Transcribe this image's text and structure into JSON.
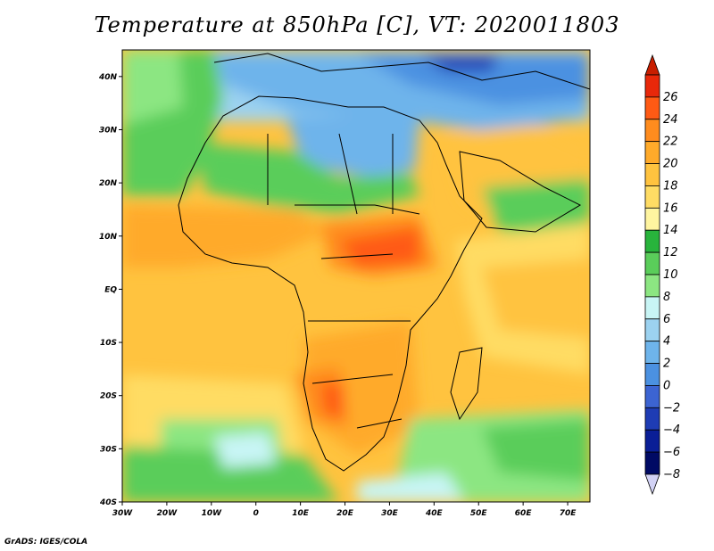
{
  "title": "Temperature at 850hPa [C], VT: 2020011803",
  "credit": "GrADS: IGES/COLA",
  "map": {
    "lon_range": [
      -30,
      75
    ],
    "lat_range": [
      -40,
      45
    ],
    "lon_ticks": [
      {
        "value": -30,
        "label": "30W"
      },
      {
        "value": -20,
        "label": "20W"
      },
      {
        "value": -10,
        "label": "10W"
      },
      {
        "value": 0,
        "label": "0"
      },
      {
        "value": 10,
        "label": "10E"
      },
      {
        "value": 20,
        "label": "20E"
      },
      {
        "value": 30,
        "label": "30E"
      },
      {
        "value": 40,
        "label": "40E"
      },
      {
        "value": 50,
        "label": "50E"
      },
      {
        "value": 60,
        "label": "60E"
      },
      {
        "value": 70,
        "label": "70E"
      }
    ],
    "lat_ticks": [
      {
        "value": 40,
        "label": "40N"
      },
      {
        "value": 30,
        "label": "30N"
      },
      {
        "value": 20,
        "label": "20N"
      },
      {
        "value": 10,
        "label": "10N"
      },
      {
        "value": 0,
        "label": "EQ"
      },
      {
        "value": -10,
        "label": "10S"
      },
      {
        "value": -20,
        "label": "20S"
      },
      {
        "value": -30,
        "label": "30S"
      },
      {
        "value": -40,
        "label": "40S"
      }
    ]
  },
  "colorbar": {
    "levels": [
      "26",
      "24",
      "22",
      "20",
      "18",
      "16",
      "14",
      "12",
      "10",
      "8",
      "6",
      "4",
      "2",
      "0",
      "−2",
      "−4",
      "−6",
      "−8"
    ],
    "colors": [
      "#e8280a",
      "#ff5a14",
      "#ff8c1e",
      "#ffaa2a",
      "#ffc33f",
      "#ffdc64",
      "#fff5a0",
      "#28b43c",
      "#5acd5a",
      "#8ce682",
      "#c8f5f5",
      "#9cd2f0",
      "#6eb4eb",
      "#4b91e1",
      "#3c64d2",
      "#1e3cb4",
      "#0a1e96",
      "#000a64"
    ],
    "top_arrow_color": "#c81e00",
    "bottom_arrow_color": "#d2d2f5"
  }
}
